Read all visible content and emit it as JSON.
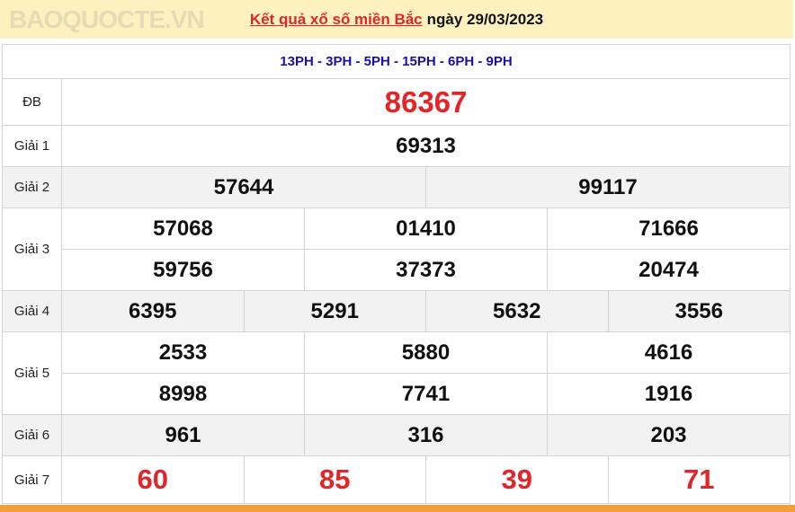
{
  "header": {
    "title_link": "Kết quả xổ số miền Bắc",
    "date_text": "ngày 29/03/2023"
  },
  "codes": "13PH - 3PH - 5PH - 15PH - 6PH - 9PH",
  "prizes": [
    {
      "label": "ĐB",
      "rows": [
        [
          "86367"
        ]
      ]
    },
    {
      "label": "Giải 1",
      "rows": [
        [
          "69313"
        ]
      ]
    },
    {
      "label": "Giải 2",
      "rows": [
        [
          "57644",
          "99117"
        ]
      ]
    },
    {
      "label": "Giải 3",
      "rows": [
        [
          "57068",
          "01410",
          "71666"
        ],
        [
          "59756",
          "37373",
          "20474"
        ]
      ]
    },
    {
      "label": "Giải 4",
      "rows": [
        [
          "6395",
          "5291",
          "5632",
          "3556"
        ]
      ]
    },
    {
      "label": "Giải 5",
      "rows": [
        [
          "2533",
          "5880",
          "4616"
        ],
        [
          "8998",
          "7741",
          "1916"
        ]
      ]
    },
    {
      "label": "Giải 6",
      "rows": [
        [
          "961",
          "316",
          "203"
        ]
      ]
    },
    {
      "label": "Giải 7",
      "rows": [
        [
          "60",
          "85",
          "39",
          "71"
        ]
      ]
    }
  ],
  "watermark": "BAOQUOCTE.VN",
  "colors": {
    "header_bg": "#fdf1c0",
    "accent_red": "#e1262a",
    "codes_blue": "#1a0fa6",
    "footer_orange": "#f0a03c"
  }
}
